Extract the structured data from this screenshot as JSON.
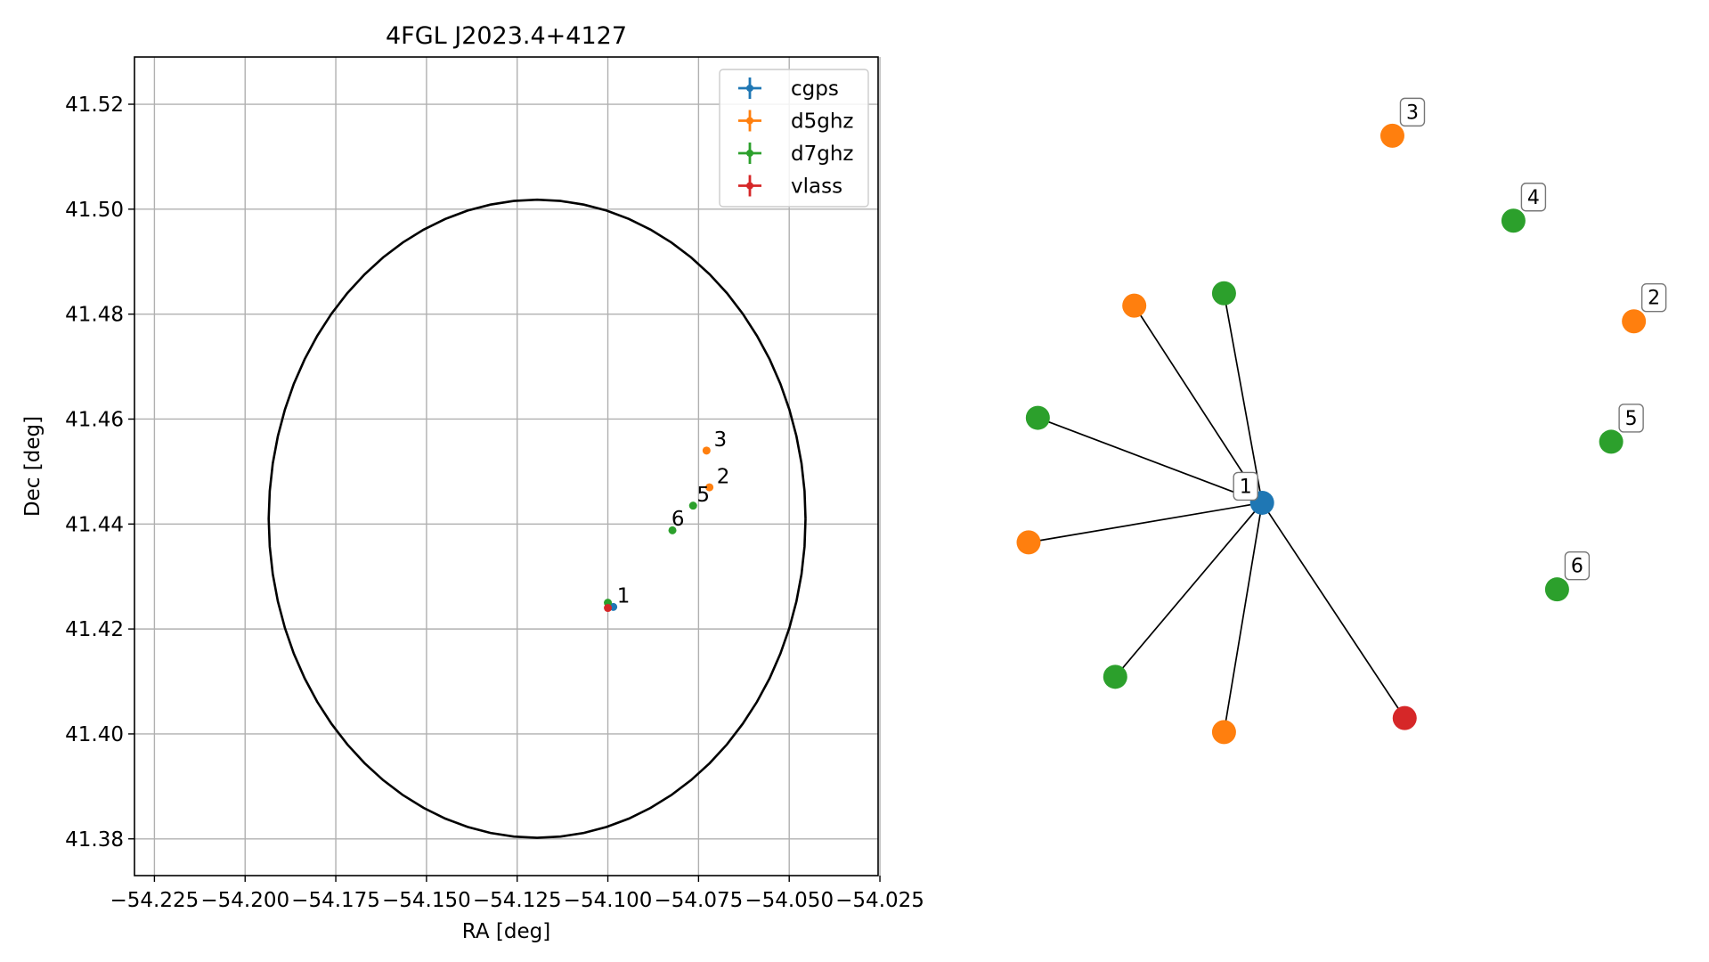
{
  "chart_data": [
    {
      "type": "scatter",
      "title": "4FGL J2023.4+4127",
      "xlabel": "RA [deg]",
      "ylabel": "Dec [deg]",
      "xlim": [
        -54.2305,
        -54.0255
      ],
      "ylim": [
        41.373,
        41.529
      ],
      "xticks": [
        -54.225,
        -54.2,
        -54.175,
        -54.15,
        -54.125,
        -54.1,
        -54.075,
        -54.05,
        -54.025
      ],
      "xtick_labels": [
        "−54.225",
        "−54.200",
        "−54.175",
        "−54.150",
        "−54.125",
        "−54.100",
        "−54.075",
        "−54.050",
        "−54.025"
      ],
      "yticks": [
        41.38,
        41.4,
        41.42,
        41.44,
        41.46,
        41.48,
        41.5,
        41.52
      ],
      "ytick_labels": [
        "41.38",
        "41.40",
        "41.42",
        "41.44",
        "41.46",
        "41.48",
        "41.50",
        "41.52"
      ],
      "grid": true,
      "legend_position": "top-right",
      "series": [
        {
          "name": "cgps",
          "color": "#1f77b4",
          "points": [
            [
              -54.0985,
              41.4242
            ]
          ]
        },
        {
          "name": "d5ghz",
          "color": "#ff7f0e",
          "points": [
            [
              -54.0728,
              41.454
            ],
            [
              -54.072,
              41.447
            ]
          ]
        },
        {
          "name": "d7ghz",
          "color": "#2ca02c",
          "points": [
            [
              -54.1,
              41.425
            ],
            [
              -54.0765,
              41.4435
            ],
            [
              -54.0822,
              41.4388
            ]
          ]
        },
        {
          "name": "vlass",
          "color": "#d62728",
          "points": [
            [
              -54.1,
              41.424
            ]
          ]
        }
      ],
      "point_labels": [
        {
          "text": "1",
          "x": -54.0975,
          "y": 41.425
        },
        {
          "text": "2",
          "x": -54.07,
          "y": 41.4478
        },
        {
          "text": "3",
          "x": -54.0708,
          "y": 41.4548
        },
        {
          "text": "5",
          "x": -54.0755,
          "y": 41.4443
        },
        {
          "text": "6",
          "x": -54.0825,
          "y": 41.4397
        }
      ],
      "circle": {
        "center_ra": -54.1195,
        "center_dec": 41.441,
        "radius_ra": 0.074,
        "radius_dec": 0.0608,
        "color": "#000000"
      }
    },
    {
      "type": "network",
      "nodes": [
        {
          "id": "1",
          "label": "1",
          "color": "#1f77b4",
          "x": 0.38,
          "y": 0.494
        },
        {
          "id": "2",
          "label": "2",
          "color": "#ff7f0e",
          "x": 0.985,
          "y": 0.274
        },
        {
          "id": "3",
          "label": "3",
          "color": "#ff7f0e",
          "x": 0.592,
          "y": 0.049
        },
        {
          "id": "4",
          "label": "4",
          "color": "#2ca02c",
          "x": 0.789,
          "y": 0.152
        },
        {
          "id": "5",
          "label": "5",
          "color": "#2ca02c",
          "x": 0.948,
          "y": 0.42
        },
        {
          "id": "6",
          "label": "6",
          "color": "#2ca02c",
          "x": 0.86,
          "y": 0.599
        },
        {
          "id": "a",
          "label": "",
          "color": "#ff7f0e",
          "x": 0.172,
          "y": 0.255
        },
        {
          "id": "b",
          "label": "",
          "color": "#2ca02c",
          "x": 0.318,
          "y": 0.24
        },
        {
          "id": "c",
          "label": "",
          "color": "#2ca02c",
          "x": 0.015,
          "y": 0.391
        },
        {
          "id": "d",
          "label": "",
          "color": "#ff7f0e",
          "x": 0.0,
          "y": 0.542
        },
        {
          "id": "e",
          "label": "",
          "color": "#2ca02c",
          "x": 0.141,
          "y": 0.705
        },
        {
          "id": "f",
          "label": "",
          "color": "#ff7f0e",
          "x": 0.318,
          "y": 0.772
        },
        {
          "id": "g",
          "label": "",
          "color": "#d62728",
          "x": 0.612,
          "y": 0.755
        }
      ],
      "edges": [
        [
          "1",
          "a"
        ],
        [
          "1",
          "b"
        ],
        [
          "1",
          "c"
        ],
        [
          "1",
          "d"
        ],
        [
          "1",
          "e"
        ],
        [
          "1",
          "f"
        ],
        [
          "1",
          "g"
        ]
      ]
    }
  ]
}
